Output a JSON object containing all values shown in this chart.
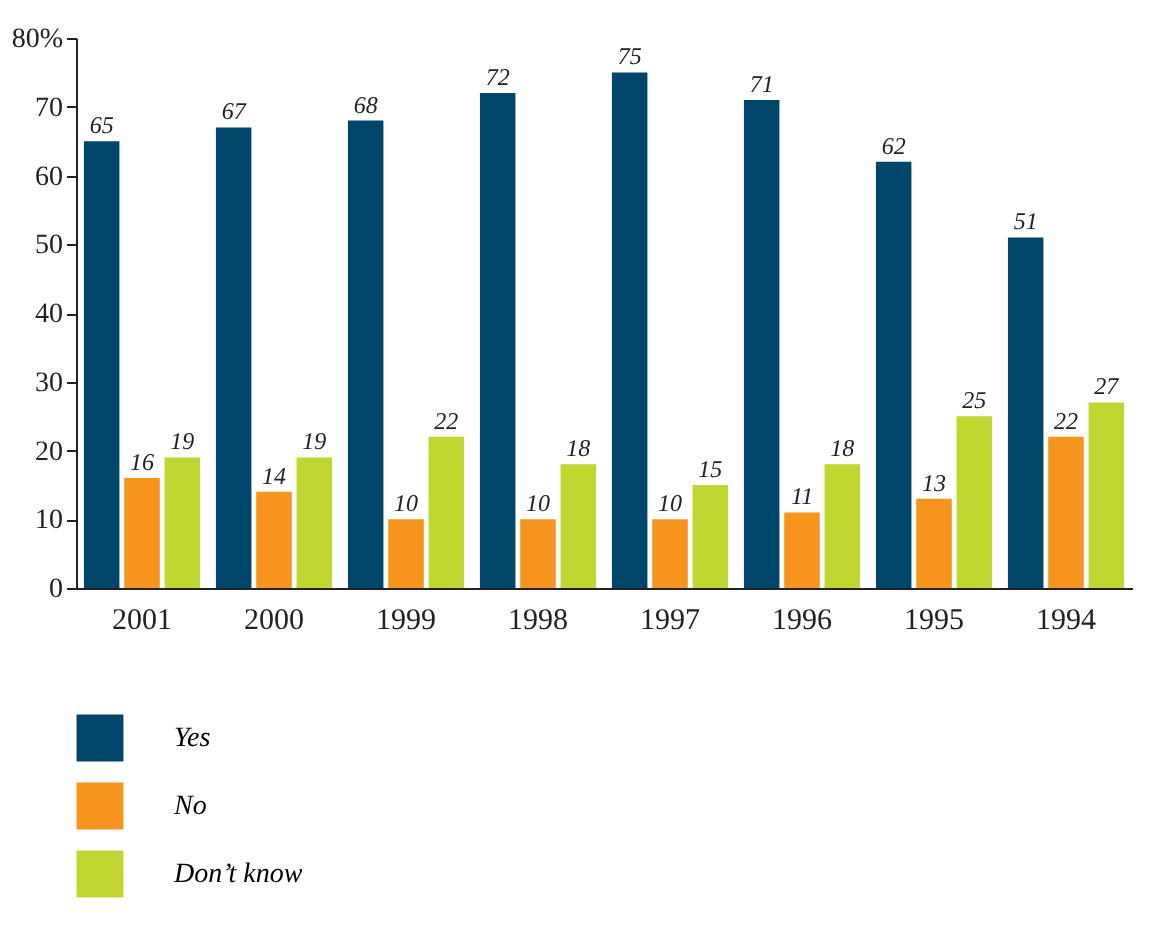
{
  "chart_data": {
    "type": "bar",
    "categories": [
      "2001",
      "2000",
      "1999",
      "1998",
      "1997",
      "1996",
      "1995",
      "1994"
    ],
    "series": [
      {
        "name": "Yes",
        "color": "#00466b",
        "values": [
          65,
          67,
          68,
          72,
          75,
          71,
          62,
          51
        ]
      },
      {
        "name": "No",
        "color": "#f7941e",
        "values": [
          16,
          14,
          10,
          10,
          10,
          11,
          13,
          22
        ]
      },
      {
        "name": "Don’t know",
        "color": "#bfd730",
        "values": [
          19,
          19,
          22,
          18,
          15,
          18,
          25,
          27
        ]
      }
    ],
    "ylim": [
      0,
      80
    ],
    "yticks": [
      0,
      10,
      20,
      30,
      40,
      50,
      60,
      70,
      {
        "value": 80,
        "label": "80%"
      }
    ],
    "grid": false,
    "legend": "bottom left",
    "data_labels": true
  }
}
